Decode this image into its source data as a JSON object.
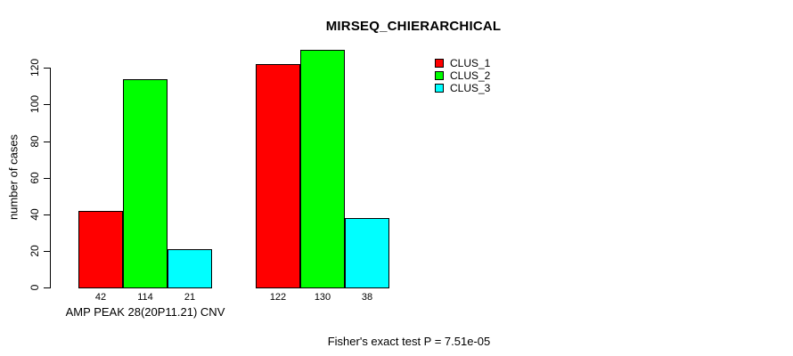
{
  "chart_data": {
    "type": "bar",
    "title": "MIRSEQ_CHIERARCHICAL",
    "xlabel": "",
    "ylabel": "number of cases",
    "ylim": [
      0,
      130
    ],
    "yticks": [
      0,
      20,
      40,
      60,
      80,
      100,
      120
    ],
    "grid": false,
    "legend_position": "top-right",
    "categories": [
      "AMP PEAK 28(20P11.21) CNV",
      ""
    ],
    "series": [
      {
        "name": "CLUS_1",
        "color": "#ff0000",
        "values": [
          42,
          122
        ]
      },
      {
        "name": "CLUS_2",
        "color": "#00ff00",
        "values": [
          114,
          130
        ]
      },
      {
        "name": "CLUS_3",
        "color": "#00ffff",
        "values": [
          21,
          38
        ]
      }
    ],
    "bar_value_labels": [
      [
        42,
        114,
        21
      ],
      [
        122,
        130,
        38
      ]
    ],
    "footnote": "Fisher's exact test P = 7.51e-05"
  },
  "colors": {
    "background": "#ffffff",
    "axis": "#000000",
    "text": "#000000"
  }
}
